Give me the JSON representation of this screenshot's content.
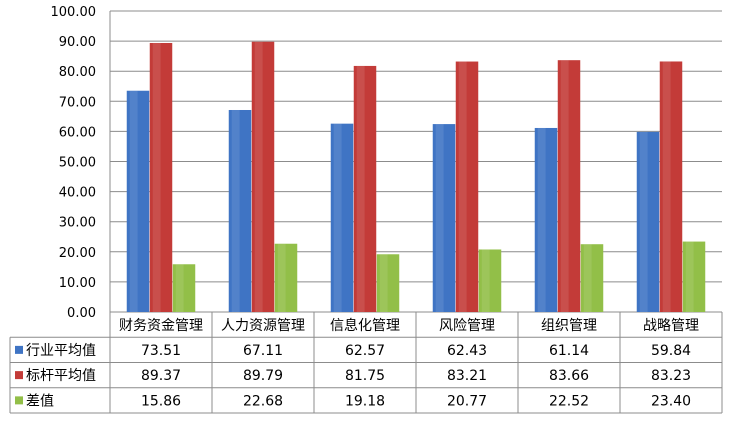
{
  "chart_data": {
    "type": "bar",
    "categories": [
      "财务资金管理",
      "人力资源管理",
      "信息化管理",
      "风险管理",
      "组织管理",
      "战略管理"
    ],
    "series": [
      {
        "name": "行业平均值",
        "color": "#3F74C4",
        "values": [
          73.51,
          67.11,
          62.57,
          62.43,
          61.14,
          59.84
        ],
        "labels": [
          "73.51",
          "67.11",
          "62.57",
          "62.43",
          "61.14",
          "59.84"
        ]
      },
      {
        "name": "标杆平均值",
        "color": "#C33B38",
        "values": [
          89.37,
          89.79,
          81.75,
          83.21,
          83.66,
          83.23
        ],
        "labels": [
          "89.37",
          "89.79",
          "81.75",
          "83.21",
          "83.66",
          "83.23"
        ]
      },
      {
        "name": "差值",
        "color": "#92BF48",
        "values": [
          15.86,
          22.68,
          19.18,
          20.77,
          22.52,
          23.4
        ],
        "labels": [
          "15.86",
          "22.68",
          "19.18",
          "20.77",
          "22.52",
          "23.40"
        ]
      }
    ],
    "yticks": [
      "0.00",
      "10.00",
      "20.00",
      "30.00",
      "40.00",
      "50.00",
      "60.00",
      "70.00",
      "80.00",
      "90.00",
      "100.00"
    ],
    "ylim": [
      0,
      100
    ],
    "grid": true,
    "legend": "data-table",
    "title": "",
    "xlabel": "",
    "ylabel": ""
  }
}
